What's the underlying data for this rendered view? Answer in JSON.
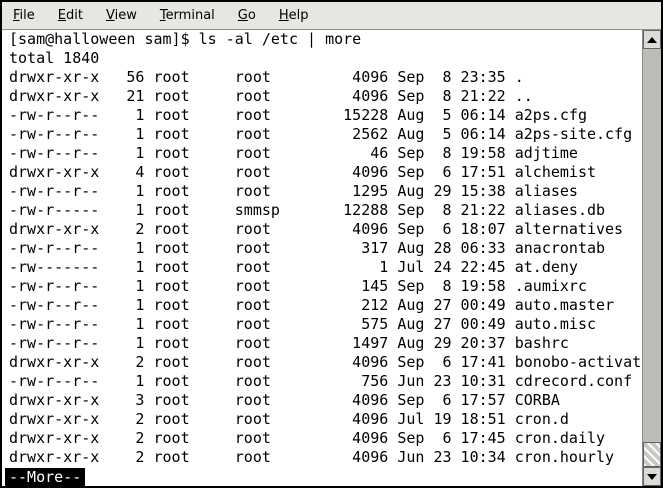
{
  "menubar": {
    "items": [
      {
        "key": "F",
        "rest": "ile"
      },
      {
        "key": "E",
        "rest": "dit"
      },
      {
        "key": "V",
        "rest": "iew"
      },
      {
        "key": "T",
        "rest": "erminal"
      },
      {
        "key": "G",
        "rest": "o"
      },
      {
        "key": "H",
        "rest": "elp"
      }
    ]
  },
  "terminal": {
    "command_line": "[sam@halloween sam]$ ls -al /etc | more",
    "prompt_user": "sam",
    "prompt_host": "halloween",
    "command": "ls -al /etc | more",
    "total_line": "total 1840",
    "files": [
      {
        "perms": "drwxr-xr-x",
        "links": 56,
        "owner": "root",
        "group": "root",
        "size": 4096,
        "month": "Sep",
        "day": 8,
        "time": "23:35",
        "name": "."
      },
      {
        "perms": "drwxr-xr-x",
        "links": 21,
        "owner": "root",
        "group": "root",
        "size": 4096,
        "month": "Sep",
        "day": 8,
        "time": "21:22",
        "name": ".."
      },
      {
        "perms": "-rw-r--r--",
        "links": 1,
        "owner": "root",
        "group": "root",
        "size": 15228,
        "month": "Aug",
        "day": 5,
        "time": "06:14",
        "name": "a2ps.cfg"
      },
      {
        "perms": "-rw-r--r--",
        "links": 1,
        "owner": "root",
        "group": "root",
        "size": 2562,
        "month": "Aug",
        "day": 5,
        "time": "06:14",
        "name": "a2ps-site.cfg"
      },
      {
        "perms": "-rw-r--r--",
        "links": 1,
        "owner": "root",
        "group": "root",
        "size": 46,
        "month": "Sep",
        "day": 8,
        "time": "19:58",
        "name": "adjtime"
      },
      {
        "perms": "drwxr-xr-x",
        "links": 4,
        "owner": "root",
        "group": "root",
        "size": 4096,
        "month": "Sep",
        "day": 6,
        "time": "17:51",
        "name": "alchemist"
      },
      {
        "perms": "-rw-r--r--",
        "links": 1,
        "owner": "root",
        "group": "root",
        "size": 1295,
        "month": "Aug",
        "day": 29,
        "time": "15:38",
        "name": "aliases"
      },
      {
        "perms": "-rw-r-----",
        "links": 1,
        "owner": "root",
        "group": "smmsp",
        "size": 12288,
        "month": "Sep",
        "day": 8,
        "time": "21:22",
        "name": "aliases.db"
      },
      {
        "perms": "drwxr-xr-x",
        "links": 2,
        "owner": "root",
        "group": "root",
        "size": 4096,
        "month": "Sep",
        "day": 6,
        "time": "18:07",
        "name": "alternatives"
      },
      {
        "perms": "-rw-r--r--",
        "links": 1,
        "owner": "root",
        "group": "root",
        "size": 317,
        "month": "Aug",
        "day": 28,
        "time": "06:33",
        "name": "anacrontab"
      },
      {
        "perms": "-rw-------",
        "links": 1,
        "owner": "root",
        "group": "root",
        "size": 1,
        "month": "Jul",
        "day": 24,
        "time": "22:45",
        "name": "at.deny"
      },
      {
        "perms": "-rw-r--r--",
        "links": 1,
        "owner": "root",
        "group": "root",
        "size": 145,
        "month": "Sep",
        "day": 8,
        "time": "19:58",
        "name": ".aumixrc"
      },
      {
        "perms": "-rw-r--r--",
        "links": 1,
        "owner": "root",
        "group": "root",
        "size": 212,
        "month": "Aug",
        "day": 27,
        "time": "00:49",
        "name": "auto.master"
      },
      {
        "perms": "-rw-r--r--",
        "links": 1,
        "owner": "root",
        "group": "root",
        "size": 575,
        "month": "Aug",
        "day": 27,
        "time": "00:49",
        "name": "auto.misc"
      },
      {
        "perms": "-rw-r--r--",
        "links": 1,
        "owner": "root",
        "group": "root",
        "size": 1497,
        "month": "Aug",
        "day": 29,
        "time": "20:37",
        "name": "bashrc"
      },
      {
        "perms": "drwxr-xr-x",
        "links": 2,
        "owner": "root",
        "group": "root",
        "size": 4096,
        "month": "Sep",
        "day": 6,
        "time": "17:41",
        "name": "bonobo-activation"
      },
      {
        "perms": "-rw-r--r--",
        "links": 1,
        "owner": "root",
        "group": "root",
        "size": 756,
        "month": "Jun",
        "day": 23,
        "time": "10:31",
        "name": "cdrecord.conf"
      },
      {
        "perms": "drwxr-xr-x",
        "links": 3,
        "owner": "root",
        "group": "root",
        "size": 4096,
        "month": "Sep",
        "day": 6,
        "time": "17:57",
        "name": "CORBA"
      },
      {
        "perms": "drwxr-xr-x",
        "links": 2,
        "owner": "root",
        "group": "root",
        "size": 4096,
        "month": "Jul",
        "day": 19,
        "time": "18:51",
        "name": "cron.d"
      },
      {
        "perms": "drwxr-xr-x",
        "links": 2,
        "owner": "root",
        "group": "root",
        "size": 4096,
        "month": "Sep",
        "day": 6,
        "time": "17:45",
        "name": "cron.daily"
      },
      {
        "perms": "drwxr-xr-x",
        "links": 2,
        "owner": "root",
        "group": "root",
        "size": 4096,
        "month": "Jun",
        "day": 23,
        "time": "10:34",
        "name": "cron.hourly"
      }
    ],
    "more_prompt": "--More--",
    "colors": {
      "terminal_bg": "#ffffff",
      "terminal_fg": "#000000",
      "more_prompt_bg": "#000000",
      "more_prompt_fg": "#ffffff",
      "menubar_bg": "#e7e6e3",
      "scrollbar_track": "#bdbcb8",
      "scrollbar_button": "#dcdbd7",
      "window_border": "#000000"
    }
  }
}
